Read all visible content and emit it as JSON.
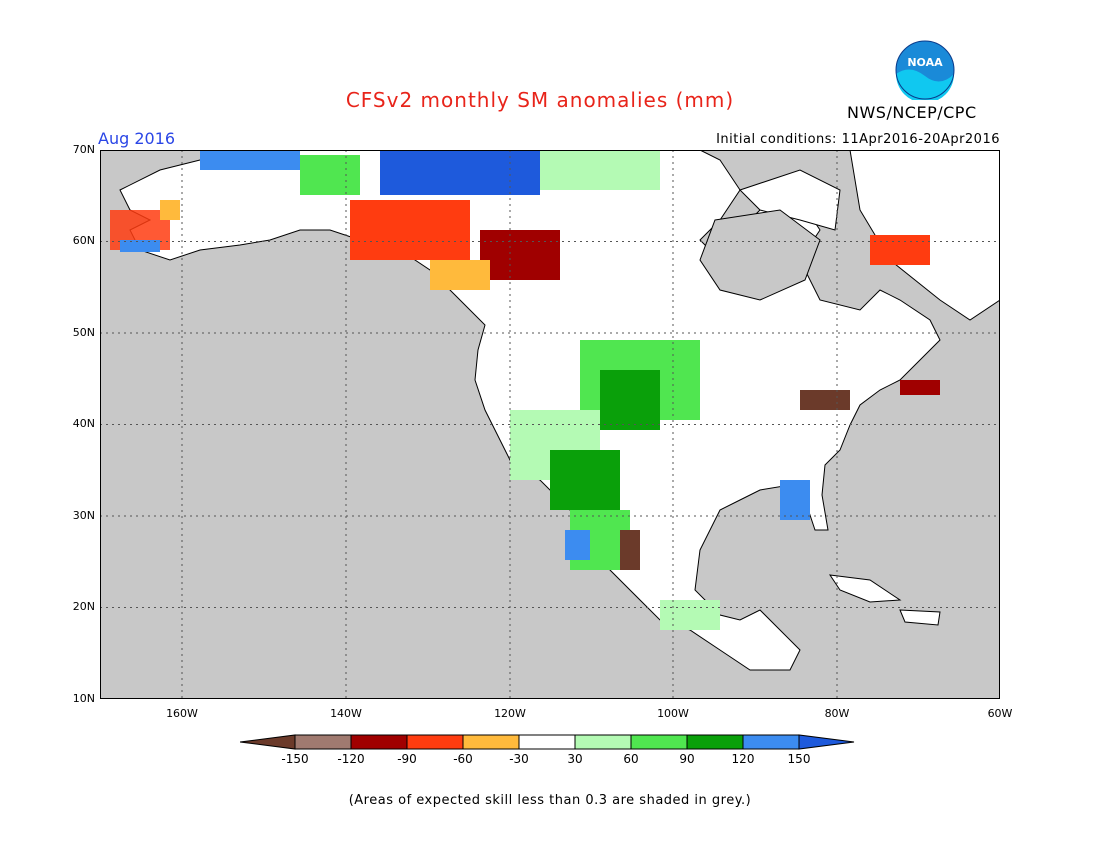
{
  "header": {
    "title": "CFSv2 monthly SM anomalies (mm)",
    "agency": "NWS/NCEP/CPC",
    "logo_text": "NOAA",
    "valid_period": "Aug 2016",
    "initial_conditions": "Initial conditions: 11Apr2016-20Apr2016"
  },
  "map": {
    "lat_labels": [
      "70N",
      "60N",
      "50N",
      "40N",
      "30N",
      "20N",
      "10N"
    ],
    "lon_labels": [
      "160W",
      "140W",
      "120W",
      "100W",
      "80W",
      "60W"
    ],
    "colors": {
      "ocean": "#c8c8c8",
      "land": "#ffffff",
      "grey_skill": "#c8c8c8"
    }
  },
  "colorbar": {
    "labels": [
      "-150",
      "-120",
      "-90",
      "-60",
      "-30",
      "30",
      "60",
      "90",
      "120",
      "150"
    ],
    "colors": [
      "#6b3a2a",
      "#a07a70",
      "#a00000",
      "#ff3c10",
      "#ffba3c",
      "#ffffff",
      "#b4fab4",
      "#50e650",
      "#0aa00a",
      "#3c8cf0",
      "#1e5adc"
    ]
  },
  "footer": {
    "note": "(Areas of expected skill less than 0.3 are shaded in grey.)"
  }
}
